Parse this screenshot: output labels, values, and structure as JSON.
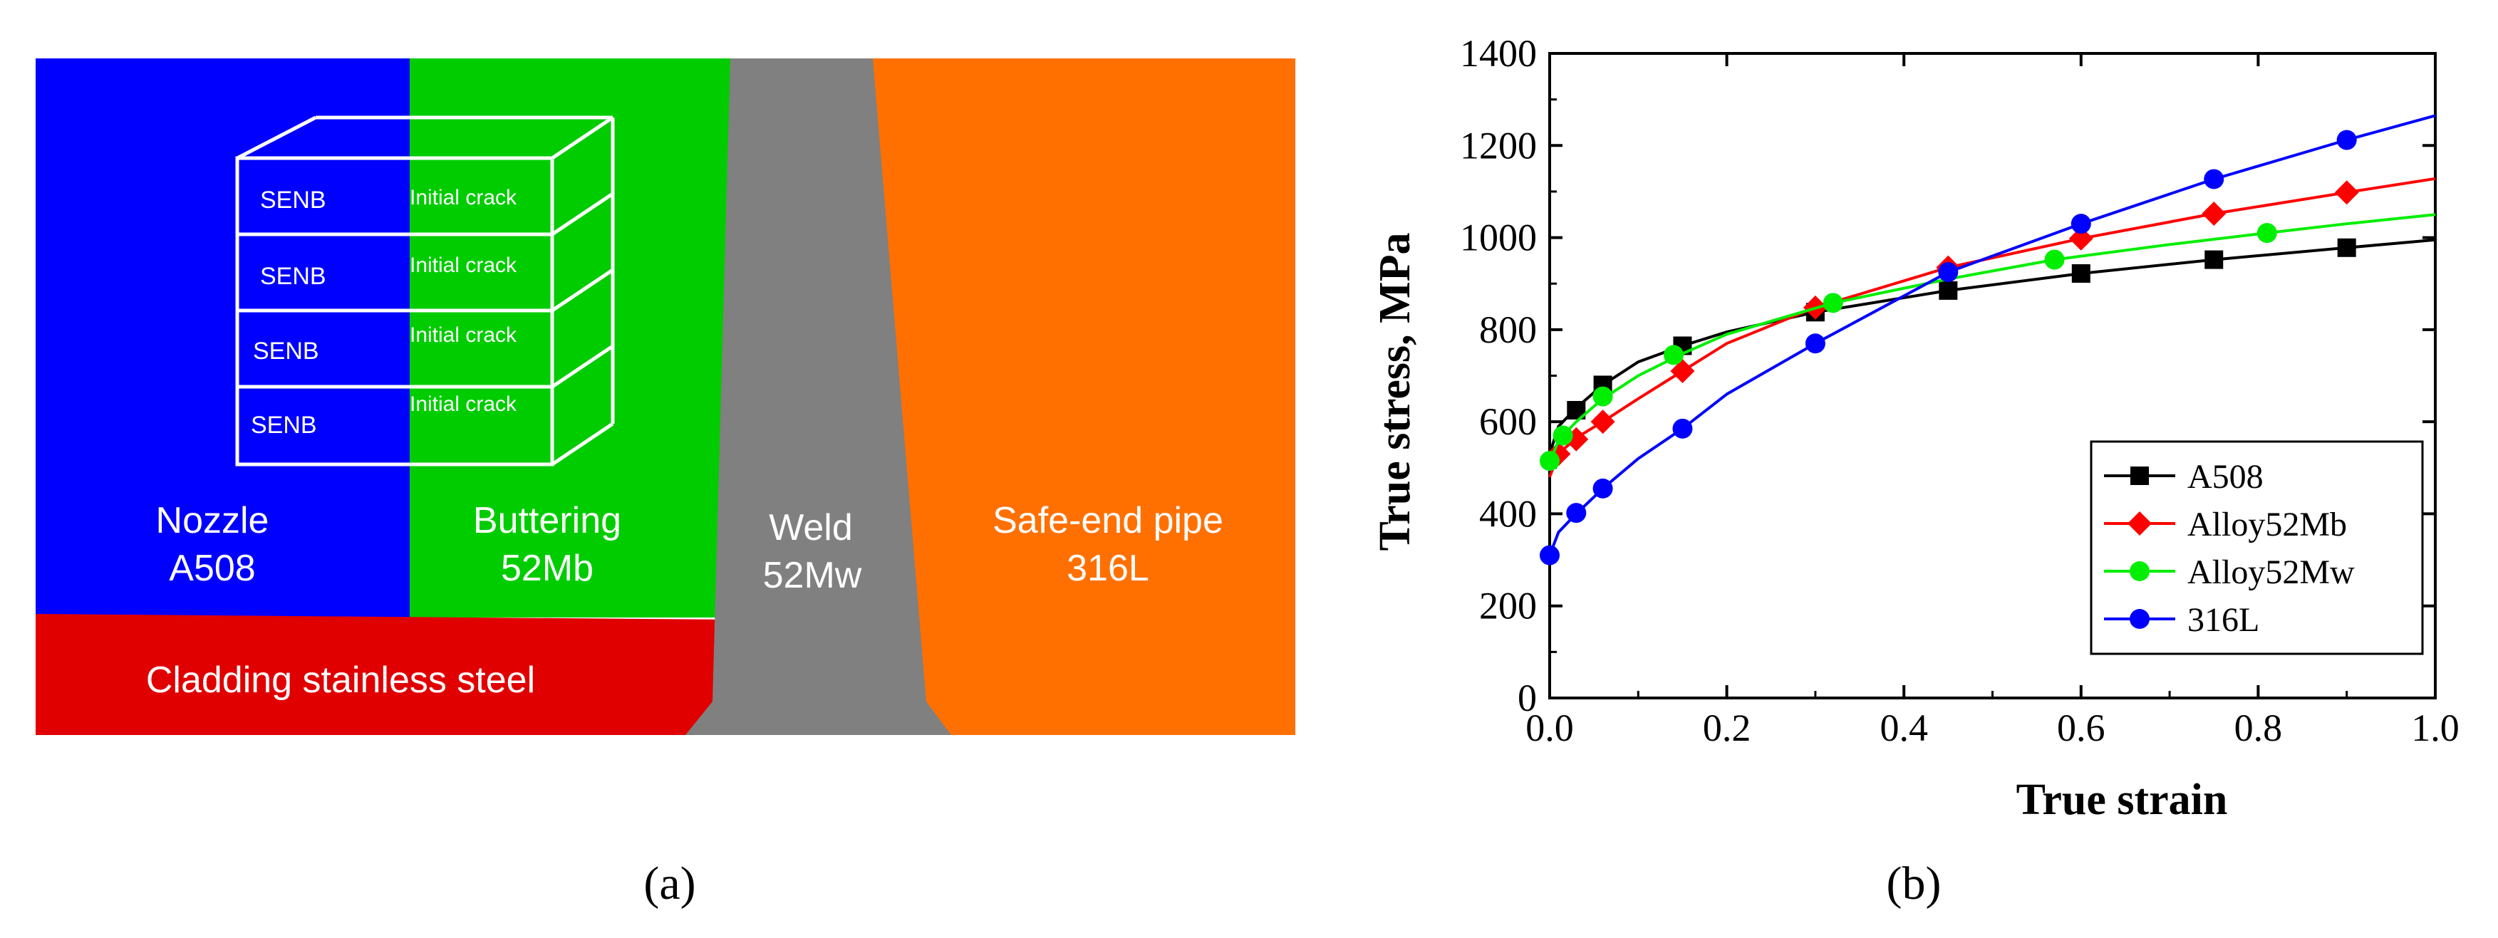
{
  "diagram": {
    "caption": "(a)",
    "regions": {
      "nozzle": {
        "line1": "Nozzle",
        "line2": "A508",
        "color": "#0000ff"
      },
      "buttering": {
        "line1": "Buttering",
        "line2": "52Mb",
        "color": "#00cc00"
      },
      "weld": {
        "line1": "Weld",
        "line2": "52Mw",
        "color": "#808080"
      },
      "safe_end": {
        "line1": "Safe-end pipe",
        "line2": "316L",
        "color": "#ff7000"
      },
      "cladding": {
        "label": "Cladding stainless steel",
        "color": "#e00000"
      }
    },
    "specimens": [
      {
        "left": "SENB",
        "right": "Initial crack"
      },
      {
        "left": "SENB",
        "right": "Initial crack"
      },
      {
        "left": "SENB",
        "right": "Initial crack"
      },
      {
        "left": "SENB",
        "right": "Initial crack"
      }
    ]
  },
  "chart_data": {
    "type": "line",
    "caption": "(b)",
    "xlabel": "True strain",
    "ylabel": "True stress, MPa",
    "xlim": [
      0,
      1.0
    ],
    "ylim": [
      0,
      1400
    ],
    "xticks": [
      0.0,
      0.2,
      0.4,
      0.6,
      0.8,
      1.0
    ],
    "xtick_labels": [
      "0.0",
      "0.2",
      "0.4",
      "0.6",
      "0.8",
      "1.0"
    ],
    "yticks": [
      0,
      200,
      400,
      600,
      800,
      1000,
      1200,
      1400
    ],
    "ytick_labels": [
      "0",
      "200",
      "400",
      "600",
      "800",
      "1000",
      "1200",
      "1400"
    ],
    "legend_position": "bottom-right",
    "series": [
      {
        "name": "A508",
        "color": "#000000",
        "marker": "square",
        "curve": [
          [
            0,
            530
          ],
          [
            0.01,
            590
          ],
          [
            0.03,
            630
          ],
          [
            0.06,
            680
          ],
          [
            0.1,
            730
          ],
          [
            0.15,
            765
          ],
          [
            0.2,
            795
          ],
          [
            0.3,
            838
          ],
          [
            0.45,
            885
          ],
          [
            0.6,
            922
          ],
          [
            0.75,
            952
          ],
          [
            0.9,
            978
          ],
          [
            1.0,
            995
          ]
        ],
        "markers": [
          [
            0.03,
            625
          ],
          [
            0.06,
            680
          ],
          [
            0.15,
            765
          ],
          [
            0.3,
            838
          ],
          [
            0.45,
            885
          ],
          [
            0.6,
            922
          ],
          [
            0.75,
            952
          ],
          [
            0.9,
            978
          ]
        ]
      },
      {
        "name": "Alloy52Mb",
        "color": "#ff0000",
        "marker": "diamond",
        "curve": [
          [
            0,
            480
          ],
          [
            0.01,
            530
          ],
          [
            0.03,
            565
          ],
          [
            0.06,
            600
          ],
          [
            0.1,
            650
          ],
          [
            0.15,
            710
          ],
          [
            0.2,
            770
          ],
          [
            0.3,
            848
          ],
          [
            0.45,
            935
          ],
          [
            0.6,
            998
          ],
          [
            0.75,
            1052
          ],
          [
            0.9,
            1098
          ],
          [
            1.0,
            1128
          ]
        ],
        "markers": [
          [
            0.01,
            530
          ],
          [
            0.03,
            562
          ],
          [
            0.06,
            600
          ],
          [
            0.15,
            710
          ],
          [
            0.3,
            848
          ],
          [
            0.45,
            935
          ],
          [
            0.6,
            998
          ],
          [
            0.75,
            1052
          ],
          [
            0.9,
            1098
          ]
        ]
      },
      {
        "name": "Alloy52Mw",
        "color": "#00ee00",
        "marker": "circle",
        "curve": [
          [
            0,
            510
          ],
          [
            0.01,
            560
          ],
          [
            0.03,
            600
          ],
          [
            0.06,
            650
          ],
          [
            0.1,
            700
          ],
          [
            0.15,
            748
          ],
          [
            0.2,
            790
          ],
          [
            0.32,
            858
          ],
          [
            0.45,
            910
          ],
          [
            0.57,
            952
          ],
          [
            0.7,
            985
          ],
          [
            0.81,
            1010
          ],
          [
            0.9,
            1030
          ],
          [
            1.0,
            1050
          ]
        ],
        "markers": [
          [
            0.0,
            515
          ],
          [
            0.015,
            570
          ],
          [
            0.06,
            655
          ],
          [
            0.14,
            745
          ],
          [
            0.32,
            858
          ],
          [
            0.57,
            952
          ],
          [
            0.81,
            1010
          ]
        ]
      },
      {
        "name": "316L",
        "color": "#0000ff",
        "marker": "circle",
        "curve": [
          [
            0,
            310
          ],
          [
            0.01,
            360
          ],
          [
            0.03,
            400
          ],
          [
            0.06,
            455
          ],
          [
            0.1,
            520
          ],
          [
            0.15,
            585
          ],
          [
            0.2,
            660
          ],
          [
            0.3,
            770
          ],
          [
            0.45,
            925
          ],
          [
            0.6,
            1030
          ],
          [
            0.75,
            1127
          ],
          [
            0.9,
            1212
          ],
          [
            1.0,
            1265
          ]
        ],
        "markers": [
          [
            0.0,
            310
          ],
          [
            0.03,
            402
          ],
          [
            0.06,
            455
          ],
          [
            0.15,
            585
          ],
          [
            0.3,
            770
          ],
          [
            0.45,
            925
          ],
          [
            0.6,
            1030
          ],
          [
            0.75,
            1127
          ],
          [
            0.9,
            1212
          ]
        ]
      }
    ]
  }
}
